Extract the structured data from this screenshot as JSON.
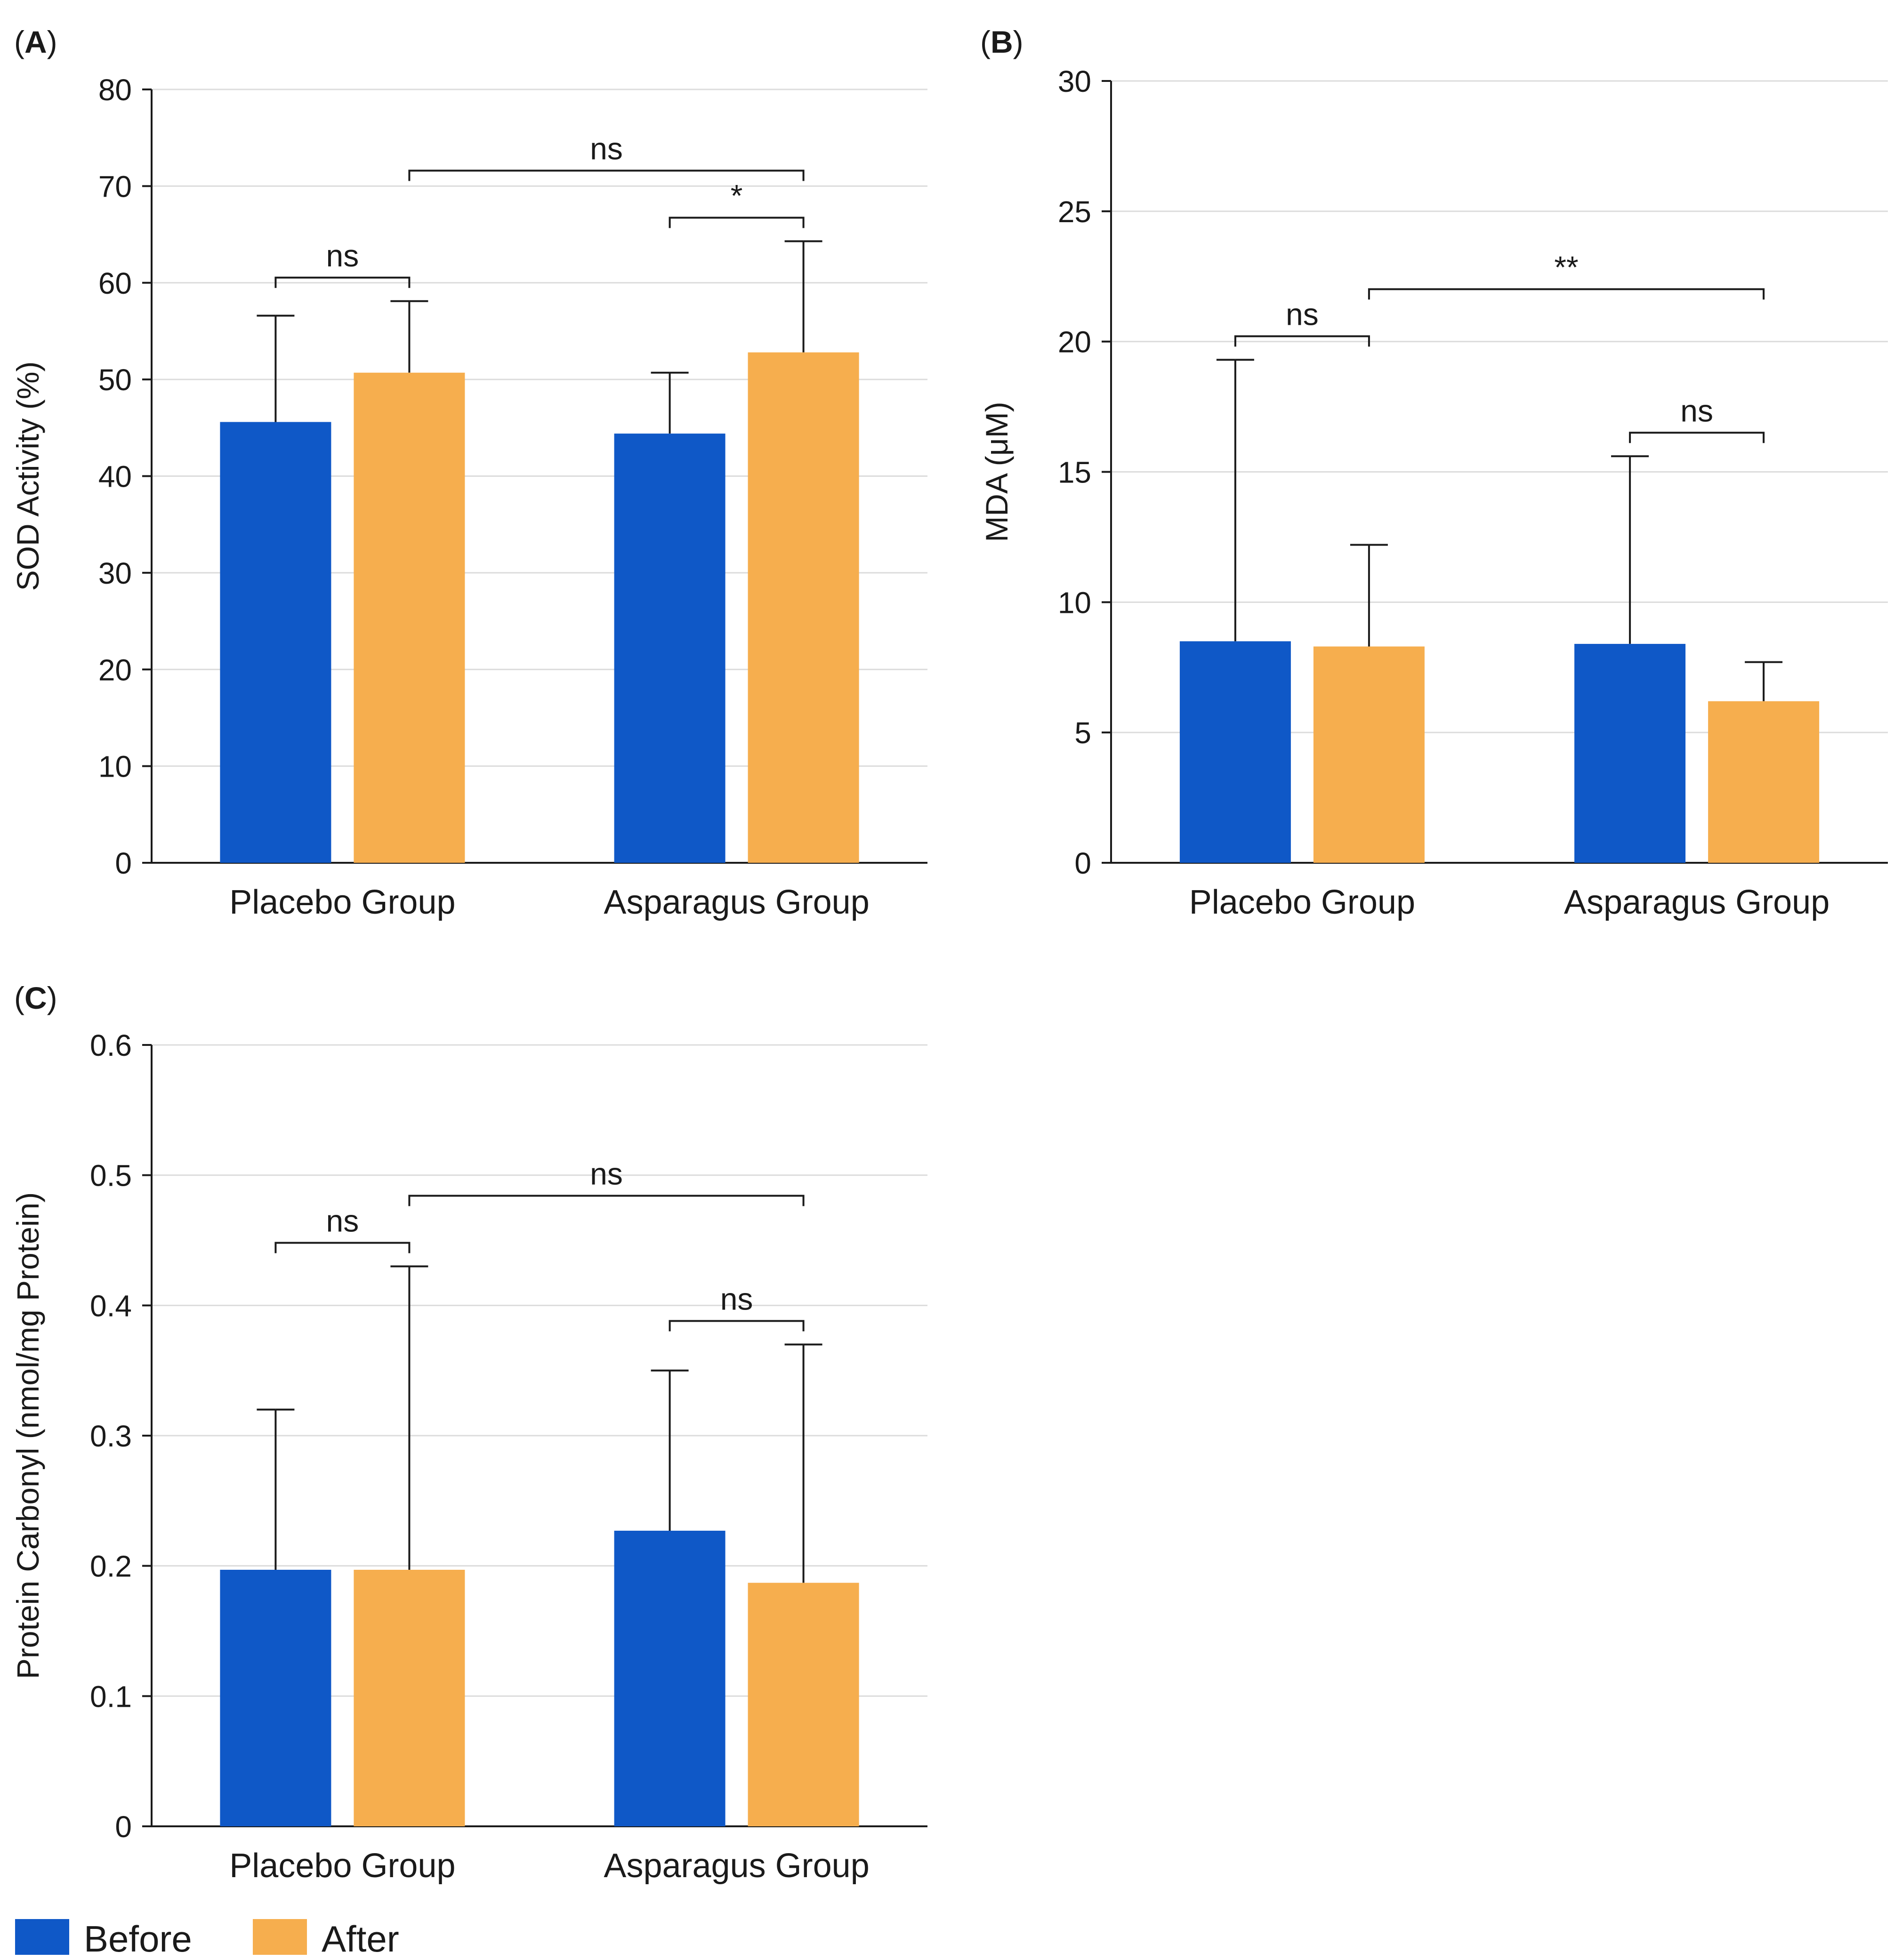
{
  "colors": {
    "before": "#0f58c7",
    "after": "#f6ae4e",
    "grid": "#dcdcdc",
    "axis": "#1a1a1a",
    "text": "#1a1a1a"
  },
  "legend": [
    {
      "key": "before",
      "label": "Before"
    },
    {
      "key": "after",
      "label": "After"
    }
  ],
  "chart_data": [
    {
      "type": "bar",
      "panel": "A",
      "title": "",
      "xlabel": "",
      "ylabel": "SOD Activity (%)",
      "ylim": [
        0,
        80
      ],
      "yticks": [
        0,
        10,
        20,
        30,
        40,
        50,
        60,
        70,
        80
      ],
      "tick_labels": [
        "0",
        "10",
        "20",
        "30",
        "40",
        "50",
        "60",
        "70",
        "80"
      ],
      "categories": [
        "Placebo Group",
        "Asparagus Group"
      ],
      "series": [
        {
          "name": "Before",
          "values": [
            45.6,
            44.4
          ],
          "error": [
            11.0,
            6.3
          ]
        },
        {
          "name": "After",
          "values": [
            50.7,
            52.8
          ],
          "error": [
            7.4,
            11.5
          ]
        }
      ],
      "significance": [
        {
          "from": [
            0,
            0
          ],
          "to": [
            0,
            1
          ],
          "label": "ns"
        },
        {
          "from": [
            1,
            0
          ],
          "to": [
            1,
            1
          ],
          "label": "*"
        },
        {
          "from": [
            0,
            1
          ],
          "to": [
            1,
            1
          ],
          "label": "ns"
        }
      ]
    },
    {
      "type": "bar",
      "panel": "B",
      "title": "",
      "xlabel": "",
      "ylabel": "MDA (μM)",
      "ylim": [
        0,
        30
      ],
      "yticks": [
        0,
        5,
        10,
        15,
        20,
        25,
        30
      ],
      "tick_labels": [
        "0",
        "5",
        "10",
        "15",
        "20",
        "25",
        "30"
      ],
      "categories": [
        "Placebo Group",
        "Asparagus Group"
      ],
      "series": [
        {
          "name": "Before",
          "values": [
            8.5,
            8.4
          ],
          "error": [
            10.8,
            7.2
          ]
        },
        {
          "name": "After",
          "values": [
            8.3,
            6.2
          ],
          "error": [
            3.9,
            1.5
          ]
        }
      ],
      "significance": [
        {
          "from": [
            0,
            0
          ],
          "to": [
            0,
            1
          ],
          "label": "ns"
        },
        {
          "from": [
            1,
            0
          ],
          "to": [
            1,
            1
          ],
          "label": "ns"
        },
        {
          "from": [
            0,
            1
          ],
          "to": [
            1,
            1
          ],
          "label": "**"
        }
      ]
    },
    {
      "type": "bar",
      "panel": "C",
      "title": "",
      "xlabel": "",
      "ylabel": "Protein Carbonyl (nmol/mg Protein)",
      "ylim": [
        0,
        0.6
      ],
      "yticks": [
        0,
        0.1,
        0.2,
        0.3,
        0.4,
        0.5,
        0.6
      ],
      "tick_labels": [
        "0",
        "0.1",
        "0.2",
        "0.3",
        "0.4",
        "0.5",
        "0.6"
      ],
      "categories": [
        "Placebo Group",
        "Asparagus Group"
      ],
      "series": [
        {
          "name": "Before",
          "values": [
            0.197,
            0.227
          ],
          "error": [
            0.123,
            0.123
          ]
        },
        {
          "name": "After",
          "values": [
            0.197,
            0.187
          ],
          "error": [
            0.233,
            0.183
          ]
        }
      ],
      "significance": [
        {
          "from": [
            0,
            0
          ],
          "to": [
            0,
            1
          ],
          "label": "ns"
        },
        {
          "from": [
            1,
            0
          ],
          "to": [
            1,
            1
          ],
          "label": "ns"
        },
        {
          "from": [
            0,
            1
          ],
          "to": [
            1,
            1
          ],
          "label": "ns"
        }
      ]
    }
  ]
}
